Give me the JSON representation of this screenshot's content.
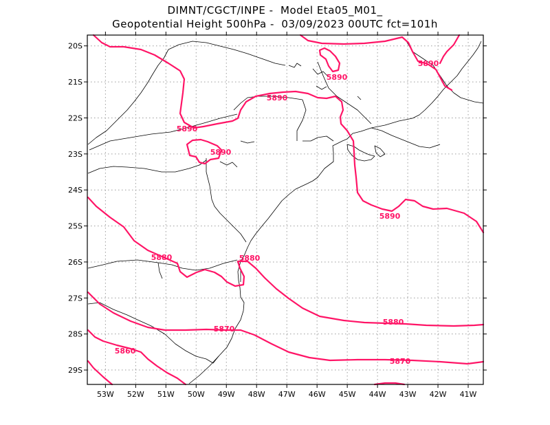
{
  "title_line1": "DIMNT/CGCT/INPE -  Model Eta05_M01_",
  "title_line2": "Geopotential Height 500hPa -  03/09/2023 00UTC fct=101h",
  "colors": {
    "contour": "#ff1466",
    "coast": "#000000",
    "grid": "#9a9a9a",
    "frame": "#000000"
  },
  "axes": {
    "lon_range": [
      -53.6,
      -40.5
    ],
    "lat_range": [
      -29.4,
      -19.7
    ],
    "lon_ticks": [
      "53W",
      "52W",
      "51W",
      "50W",
      "49W",
      "48W",
      "47W",
      "46W",
      "45W",
      "44W",
      "43W",
      "42W",
      "41W"
    ],
    "lat_ticks": [
      "20S",
      "21S",
      "22S",
      "23S",
      "24S",
      "25S",
      "26S",
      "27S",
      "28S",
      "29S"
    ],
    "grid": "dotted"
  },
  "contours": {
    "unit": "gpm",
    "levels": [
      {
        "value": 5890,
        "labels": [
          "5890",
          "5890",
          "5890",
          "5890",
          "5890",
          "5890"
        ]
      },
      {
        "value": 5880,
        "labels": [
          "5880",
          "5880",
          "5880"
        ]
      },
      {
        "value": 5870,
        "labels": [
          "5870",
          "5870"
        ]
      },
      {
        "value": 5860,
        "labels": [
          "5860"
        ]
      }
    ]
  }
}
